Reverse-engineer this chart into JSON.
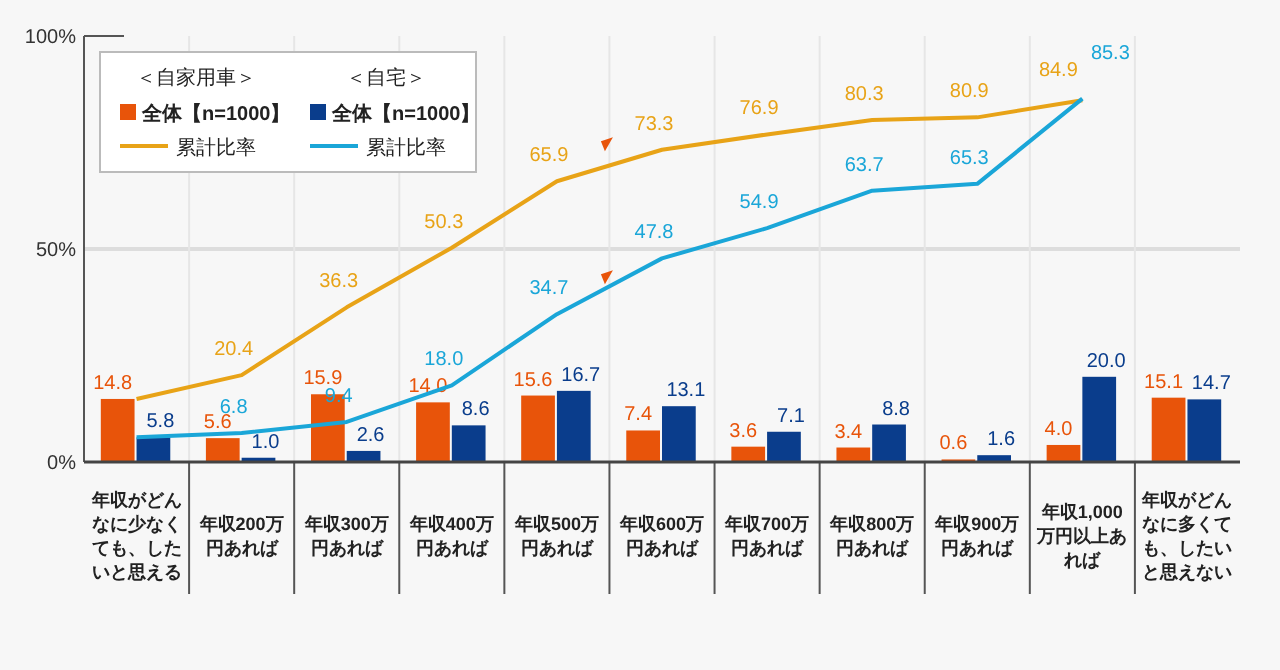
{
  "chart_data": {
    "type": "bar",
    "categories": [
      "年収がどんなに少なくても、したいと思える",
      "年収200万円あれば",
      "年収300万円あれば",
      "年収400万円あれば",
      "年収500万円あれば",
      "年収600万円あれば",
      "年収700万円あれば",
      "年収800万円あれば",
      "年収900万円あれば",
      "年収1,000万円以上あれば",
      "年収がどんなに多くても、したいと思えない"
    ],
    "series": [
      {
        "name": "全体【n=1000】",
        "color": "#e8540a",
        "values": [
          14.8,
          5.6,
          15.9,
          14.0,
          15.6,
          7.4,
          3.6,
          3.4,
          0.6,
          4.0,
          15.1
        ],
        "value_labels": [
          "14.8",
          "5.6",
          "15.9",
          "14.0",
          "15.6",
          "7.4",
          "3.6",
          "3.4",
          "0.6",
          "4.0",
          "15.1"
        ]
      },
      {
        "name": "全体【n=1000】",
        "color": "#0a3d8c",
        "values": [
          5.8,
          1.0,
          2.6,
          8.6,
          16.7,
          13.1,
          7.1,
          8.8,
          1.6,
          20.0,
          14.7
        ],
        "value_labels": [
          "5.8",
          "1.0",
          "2.6",
          "8.6",
          "16.7",
          "13.1",
          "7.1",
          "8.8",
          "1.6",
          "20.0",
          "14.7"
        ]
      },
      {
        "name": "累計比率",
        "type": "line",
        "color": "#e8a317",
        "values": [
          14.8,
          20.4,
          36.3,
          50.3,
          65.9,
          73.3,
          76.9,
          80.3,
          80.9,
          84.9,
          null
        ],
        "value_labels": [
          null,
          "20.4",
          "36.3",
          "50.3",
          "65.9",
          "73.3",
          "76.9",
          "80.3",
          "80.9",
          "84.9",
          null
        ]
      },
      {
        "name": "累計比率",
        "type": "line",
        "color": "#1aa6d8",
        "values": [
          5.8,
          6.8,
          9.4,
          18.0,
          34.7,
          47.8,
          54.9,
          63.7,
          65.3,
          85.3,
          null
        ],
        "value_labels": [
          null,
          "6.8",
          "9.4",
          "18.0",
          "34.7",
          "47.8",
          "54.9",
          "63.7",
          "65.3",
          "85.3",
          null
        ]
      }
    ],
    "ylim": [
      0,
      100
    ],
    "yticks": [
      {
        "value": 0,
        "label": "0%"
      },
      {
        "value": 50,
        "label": "50%"
      },
      {
        "value": 100,
        "label": "100%"
      }
    ],
    "ref_lines": [
      {
        "axis": "y",
        "value": 50,
        "color": "#dddddd"
      }
    ],
    "legend": "top left",
    "marker": "none",
    "annotations": [
      "＜自家用車＞",
      "＜自宅＞"
    ]
  }
}
